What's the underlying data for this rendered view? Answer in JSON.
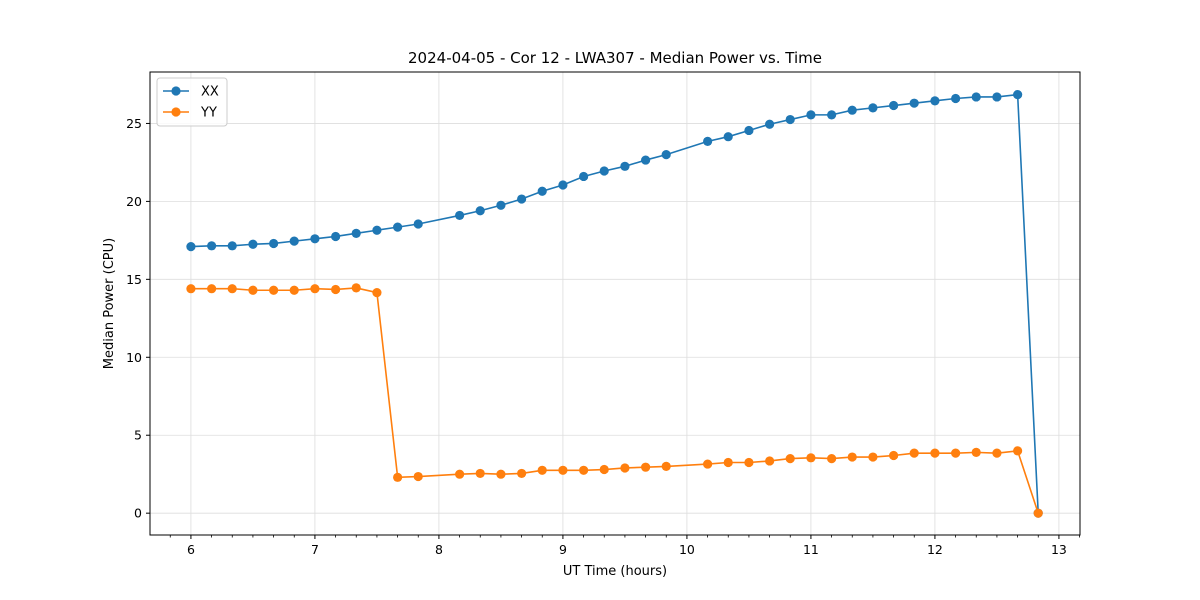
{
  "chart_data": {
    "type": "line",
    "title": "2024-04-05 - Cor 12 - LWA307 - Median Power vs. Time",
    "xlabel": "UT Time (hours)",
    "ylabel": "Median Power (CPU)",
    "xlim": [
      5.67,
      13.17
    ],
    "ylim": [
      -1.4,
      28.3
    ],
    "xticks": [
      6,
      7,
      8,
      9,
      10,
      11,
      12,
      13
    ],
    "yticks": [
      0,
      5,
      10,
      15,
      20,
      25
    ],
    "grid": true,
    "legend": "top-left",
    "series": [
      {
        "name": "XX",
        "color": "#1f77b4",
        "x": [
          6.0,
          6.167,
          6.333,
          6.5,
          6.667,
          6.833,
          7.0,
          7.167,
          7.333,
          7.5,
          7.667,
          7.833,
          8.167,
          8.333,
          8.5,
          8.667,
          8.833,
          9.0,
          9.167,
          9.333,
          9.5,
          9.667,
          9.833,
          10.167,
          10.333,
          10.5,
          10.667,
          10.833,
          11.0,
          11.167,
          11.333,
          11.5,
          11.667,
          11.833,
          12.0,
          12.167,
          12.333,
          12.5,
          12.667,
          12.833
        ],
        "y": [
          17.1,
          17.15,
          17.15,
          17.25,
          17.3,
          17.45,
          17.6,
          17.75,
          17.95,
          18.15,
          18.35,
          18.55,
          19.1,
          19.4,
          19.75,
          20.15,
          20.65,
          21.05,
          21.6,
          21.95,
          22.25,
          22.65,
          23.0,
          23.85,
          24.15,
          24.55,
          24.95,
          25.25,
          25.55,
          25.55,
          25.85,
          26.0,
          26.15,
          26.3,
          26.45,
          26.6,
          26.7,
          26.7,
          26.85,
          0.0
        ]
      },
      {
        "name": "YY",
        "color": "#ff7f0e",
        "x": [
          6.0,
          6.167,
          6.333,
          6.5,
          6.667,
          6.833,
          7.0,
          7.167,
          7.333,
          7.5,
          7.667,
          7.833,
          8.167,
          8.333,
          8.5,
          8.667,
          8.833,
          9.0,
          9.167,
          9.333,
          9.5,
          9.667,
          9.833,
          10.167,
          10.333,
          10.5,
          10.667,
          10.833,
          11.0,
          11.167,
          11.333,
          11.5,
          11.667,
          11.833,
          12.0,
          12.167,
          12.333,
          12.5,
          12.667,
          12.833
        ],
        "y": [
          14.4,
          14.4,
          14.4,
          14.3,
          14.3,
          14.3,
          14.4,
          14.35,
          14.45,
          14.15,
          2.3,
          2.35,
          2.5,
          2.55,
          2.5,
          2.55,
          2.75,
          2.75,
          2.75,
          2.8,
          2.9,
          2.95,
          3.0,
          3.15,
          3.25,
          3.25,
          3.35,
          3.5,
          3.55,
          3.5,
          3.6,
          3.6,
          3.7,
          3.85,
          3.85,
          3.85,
          3.9,
          3.85,
          4.0,
          0.0
        ]
      }
    ]
  }
}
